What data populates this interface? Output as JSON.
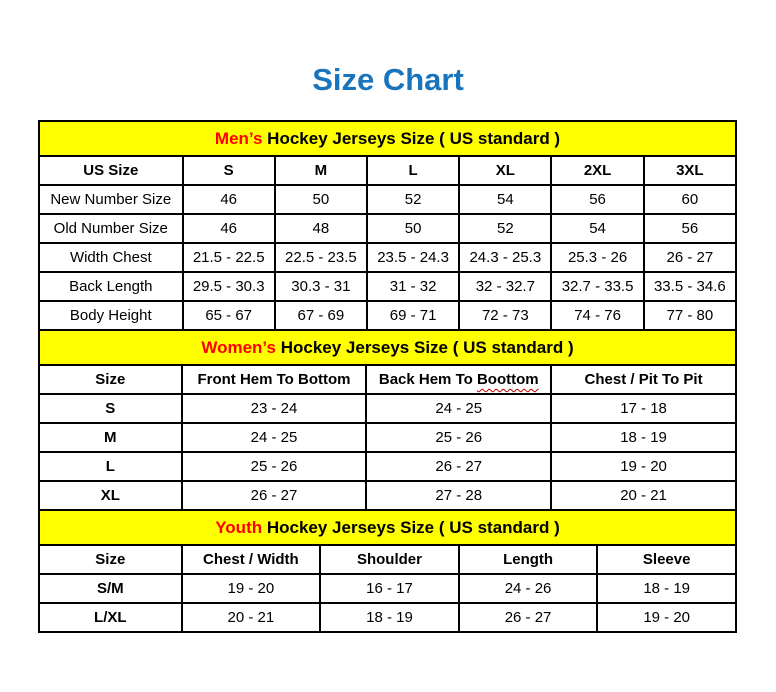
{
  "page": {
    "title": "Size Chart"
  },
  "colors": {
    "title_blue": "#1874BC",
    "band_yellow": "#FFFF00",
    "accent_red": "#FF0000",
    "squiggle_red": "#C00000",
    "border_black": "#000000"
  },
  "tables": [
    {
      "id": "mens",
      "band": {
        "highlight": "Men’s",
        "rest": " Hockey Jerseys Size ( US standard )"
      },
      "columns": [
        "US Size",
        "S",
        "M",
        "L",
        "XL",
        "2XL",
        "3XL"
      ],
      "rows": [
        {
          "label": "New Number Size",
          "values": [
            "46",
            "50",
            "52",
            "54",
            "56",
            "60"
          ]
        },
        {
          "label": "Old Number Size",
          "values": [
            "46",
            "48",
            "50",
            "52",
            "54",
            "56"
          ]
        },
        {
          "label": "Width Chest",
          "values": [
            "21.5 - 22.5",
            "22.5 - 23.5",
            "23.5 - 24.3",
            "24.3 - 25.3",
            "25.3 - 26",
            "26 - 27"
          ]
        },
        {
          "label": "Back Length",
          "values": [
            "29.5 - 30.3",
            "30.3 - 31",
            "31 - 32",
            "32 - 32.7",
            "32.7 - 33.5",
            "33.5 - 34.6"
          ]
        },
        {
          "label": "Body Height",
          "values": [
            "65 - 67",
            "67 - 69",
            "69 - 71",
            "72 - 73",
            "74 - 76",
            "77 - 80"
          ]
        }
      ]
    },
    {
      "id": "womens",
      "band": {
        "highlight": "Women’s",
        "rest": " Hockey Jerseys Size ( US standard )"
      },
      "columns": [
        "Size",
        "Front Hem To Bottom",
        {
          "prefix": "Back Hem To ",
          "word": "Boottom",
          "squiggle": true
        },
        "Chest / Pit To Pit"
      ],
      "rows": [
        {
          "label": "S",
          "values": [
            "23 - 24",
            "24 - 25",
            "17 - 18"
          ]
        },
        {
          "label": "M",
          "values": [
            "24 - 25",
            "25 - 26",
            "18 - 19"
          ]
        },
        {
          "label": "L",
          "values": [
            "25 - 26",
            "26 - 27",
            "19 - 20"
          ]
        },
        {
          "label": "XL",
          "values": [
            "26 - 27",
            "27 - 28",
            "20 - 21"
          ]
        }
      ]
    },
    {
      "id": "youth",
      "band": {
        "highlight": "Youth",
        "rest": " Hockey Jerseys Size ( US standard )"
      },
      "columns": [
        "Size",
        "Chest / Width",
        "Shoulder",
        "Length",
        "Sleeve"
      ],
      "rows": [
        {
          "label": "S/M",
          "values": [
            "19 - 20",
            "16 - 17",
            "24 - 26",
            "18 - 19"
          ]
        },
        {
          "label": "L/XL",
          "values": [
            "20 - 21",
            "18 - 19",
            "26 - 27",
            "19 - 20"
          ]
        }
      ]
    }
  ]
}
